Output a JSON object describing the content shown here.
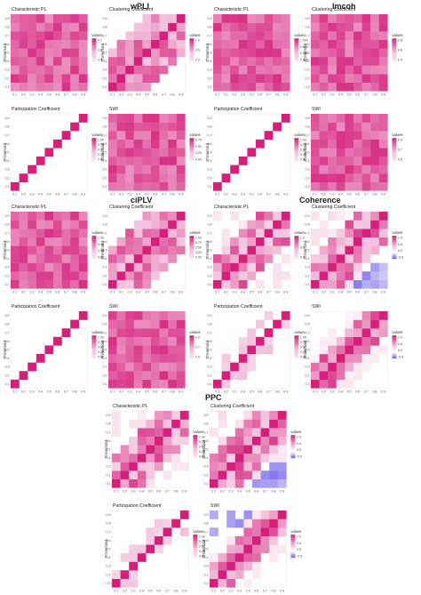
{
  "groups": [
    {
      "id": "wpli",
      "title": "wPLI"
    },
    {
      "id": "imcoh",
      "title": "Imcoh"
    },
    {
      "id": "ciplv",
      "title": "ciPLV"
    },
    {
      "id": "coherence",
      "title": "Coherence"
    },
    {
      "id": "ppc",
      "title": "PPC"
    }
  ],
  "axis_label": "Threshold",
  "legend_title": "values",
  "ticks": [
    "0.1",
    "0.2",
    "0.3",
    "0.4",
    "0.5",
    "0.6",
    "0.7",
    "0.8",
    "0.9"
  ],
  "colors": {
    "high": "#d4207a",
    "mid": "#f3c0dc",
    "low": "#ffffff",
    "neg": "#6a5ae8"
  },
  "chart_data": [
    {
      "type": "heatmap",
      "group": "wPLI",
      "title": "Characteristic PL",
      "legend": [
        "0.7",
        "0.6",
        "0.5"
      ],
      "pattern": "full"
    },
    {
      "type": "heatmap",
      "group": "wPLI",
      "title": "Clustering Coefficient",
      "legend": [
        "1.0",
        "0.5",
        "0.0"
      ],
      "pattern": "upper"
    },
    {
      "type": "heatmap",
      "group": "wPLI",
      "title": "Participation Coefficient",
      "legend": [
        "1.00",
        "0.75",
        "0.50",
        "0.25",
        "0.00"
      ],
      "pattern": "diag"
    },
    {
      "type": "heatmap",
      "group": "wPLI",
      "title": "SWI",
      "legend": [
        "0.75",
        "0.50",
        "0.25",
        "0.00"
      ],
      "pattern": "full"
    },
    {
      "type": "heatmap",
      "group": "Imcoh",
      "title": "Characteristic PL",
      "legend": [
        "1.000",
        "0.975",
        "0.950",
        "0.925"
      ],
      "pattern": "full"
    },
    {
      "type": "heatmap",
      "group": "Imcoh",
      "title": "Clustering Coefficient",
      "legend": [
        "0.8",
        "0.6",
        "0.4"
      ],
      "pattern": "full"
    },
    {
      "type": "heatmap",
      "group": "Imcoh",
      "title": "Participation Coefficient",
      "legend": [
        "1.00",
        "0.75",
        "0.50",
        "0.25",
        "0.00"
      ],
      "pattern": "diag"
    },
    {
      "type": "heatmap",
      "group": "Imcoh",
      "title": "SWI",
      "legend": [
        "0.9",
        "0.7",
        "0.5"
      ],
      "pattern": "full"
    },
    {
      "type": "heatmap",
      "group": "ciPLV",
      "title": "Characteristic PL",
      "legend": [
        "1.00",
        "0.95",
        "0.90",
        "0.85"
      ],
      "pattern": "full"
    },
    {
      "type": "heatmap",
      "group": "ciPLV",
      "title": "Clustering Coefficient",
      "legend": [
        "1.00",
        "0.75",
        "0.50",
        "0.25",
        "0.00"
      ],
      "pattern": "upper"
    },
    {
      "type": "heatmap",
      "group": "ciPLV",
      "title": "Participation Coefficient",
      "legend": [
        "1.00",
        "0.75",
        "0.50",
        "0.25",
        "0.00"
      ],
      "pattern": "diag"
    },
    {
      "type": "heatmap",
      "group": "ciPLV",
      "title": "SWI",
      "legend": [
        "0.9",
        "0.7",
        "0.5"
      ],
      "pattern": "full"
    },
    {
      "type": "heatmap",
      "group": "Coherence",
      "title": "Characteristic PL",
      "legend": [
        "1.0",
        "0.5",
        "0.0"
      ],
      "pattern": "sparse"
    },
    {
      "type": "heatmap",
      "group": "Coherence",
      "title": "Clustering Coefficient",
      "legend": [
        "1.0",
        "0.5",
        "0.0",
        "-0.5"
      ],
      "pattern": "neg"
    },
    {
      "type": "heatmap",
      "group": "Coherence",
      "title": "Participation Coefficient",
      "legend": [
        "1.00",
        "0.75",
        "0.50",
        "0.25",
        "0.00"
      ],
      "pattern": "diagsparse"
    },
    {
      "type": "heatmap",
      "group": "Coherence",
      "title": "SWI",
      "legend": [
        "1.0",
        "0.5",
        "0.0",
        "-0.5"
      ],
      "pattern": "band"
    },
    {
      "type": "heatmap",
      "group": "PPC",
      "title": "Characteristic PL",
      "legend": [
        "1.00",
        "0.75",
        "0.50",
        "0.25",
        "0.00"
      ],
      "pattern": "sparse"
    },
    {
      "type": "heatmap",
      "group": "PPC",
      "title": "Clustering Coefficient",
      "legend": [
        "1.0",
        "0.5",
        "0.0",
        "-0.5"
      ],
      "pattern": "neg"
    },
    {
      "type": "heatmap",
      "group": "PPC",
      "title": "Participation Coefficient",
      "legend": [
        "1.00",
        "0.75",
        "0.50",
        "0.25",
        "0.00"
      ],
      "pattern": "diagsparse"
    },
    {
      "type": "heatmap",
      "group": "PPC",
      "title": "SWI",
      "legend": [
        "1.0",
        "0.5",
        "0.0",
        "-0.5"
      ],
      "pattern": "negband"
    }
  ]
}
